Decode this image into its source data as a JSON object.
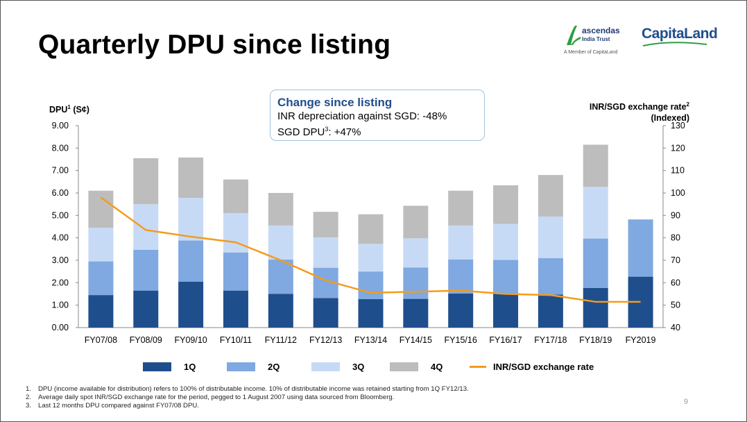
{
  "slide": {
    "title": "Quarterly DPU since listing",
    "page_number": "9"
  },
  "logos": {
    "ascendas_name": "ascendas",
    "ascendas_sub": "India Trust",
    "ascendas_member": "A Member of CapitaLand",
    "capitaland": "CapitaLand"
  },
  "callout": {
    "heading": "Change since listing",
    "line1": "INR depreciation against SGD: -48%",
    "line2_prefix": "SGD DPU",
    "line2_sup": "3",
    "line2_suffix": ": +47%"
  },
  "axis_titles": {
    "left_main": "DPU",
    "left_sup": "1",
    "left_unit": " (S¢)",
    "right_line1_main": "INR/SGD exchange rate",
    "right_line1_sup": "2",
    "right_line2": "(Indexed)"
  },
  "legend": {
    "q1": "1Q",
    "q2": "2Q",
    "q3": "3Q",
    "q4": "4Q",
    "fx": "INR/SGD exchange rate"
  },
  "notes": [
    {
      "num": "1.",
      "text": "DPU (income available for distribution) refers to 100% of distributable income. 10% of distributable income was retained starting from 1Q FY12/13."
    },
    {
      "num": "2.",
      "text": "Average daily spot INR/SGD exchange rate for the period, pegged to 1 August 2007 using data sourced from Bloomberg."
    },
    {
      "num": "3.",
      "text": "Last 12 months DPU compared against FY07/08 DPU."
    }
  ],
  "colors": {
    "q1": "#1f4e8c",
    "q2": "#7fa9e0",
    "q3": "#c7daf5",
    "q4": "#bdbdbd",
    "fx": "#f59b1b",
    "callout_heading": "#1f4e8c"
  },
  "chart_data": {
    "type": "bar",
    "stacked": true,
    "categories": [
      "FY07/08",
      "FY08/09",
      "FY09/10",
      "FY10/11",
      "FY11/12",
      "FY12/13",
      "FY13/14",
      "FY14/15",
      "FY15/16",
      "FY16/17",
      "FY17/18",
      "FY18/19",
      "FY2019"
    ],
    "series": [
      {
        "name": "1Q",
        "values": [
          1.45,
          1.65,
          2.05,
          1.65,
          1.5,
          1.32,
          1.27,
          1.28,
          1.52,
          1.5,
          1.47,
          1.77,
          2.27
        ]
      },
      {
        "name": "2Q",
        "values": [
          1.5,
          1.82,
          1.83,
          1.7,
          1.53,
          1.35,
          1.23,
          1.4,
          1.52,
          1.52,
          1.63,
          2.2,
          2.55
        ]
      },
      {
        "name": "3Q",
        "values": [
          1.5,
          2.03,
          1.9,
          1.75,
          1.52,
          1.35,
          1.23,
          1.3,
          1.51,
          1.6,
          1.85,
          2.3,
          0
        ]
      },
      {
        "name": "4Q",
        "values": [
          1.65,
          2.05,
          1.8,
          1.5,
          1.45,
          1.14,
          1.32,
          1.45,
          1.55,
          1.72,
          1.85,
          1.88,
          0
        ]
      }
    ],
    "line": {
      "name": "INR/SGD exchange rate",
      "axis": "right",
      "values": [
        98,
        83.5,
        80.5,
        78,
        70,
        61,
        55.5,
        56,
        56.5,
        55,
        54.5,
        51.5,
        51.5
      ]
    },
    "yleft": {
      "min": 0,
      "max": 9,
      "step": 1,
      "tick_labels": [
        "0.00",
        "1.00",
        "2.00",
        "3.00",
        "4.00",
        "5.00",
        "6.00",
        "7.00",
        "8.00",
        "9.00"
      ]
    },
    "yright": {
      "min": 40,
      "max": 130,
      "step": 10,
      "tick_labels": [
        "40",
        "50",
        "60",
        "70",
        "80",
        "90",
        "100",
        "110",
        "120",
        "130"
      ]
    },
    "legend_position": "bottom"
  }
}
